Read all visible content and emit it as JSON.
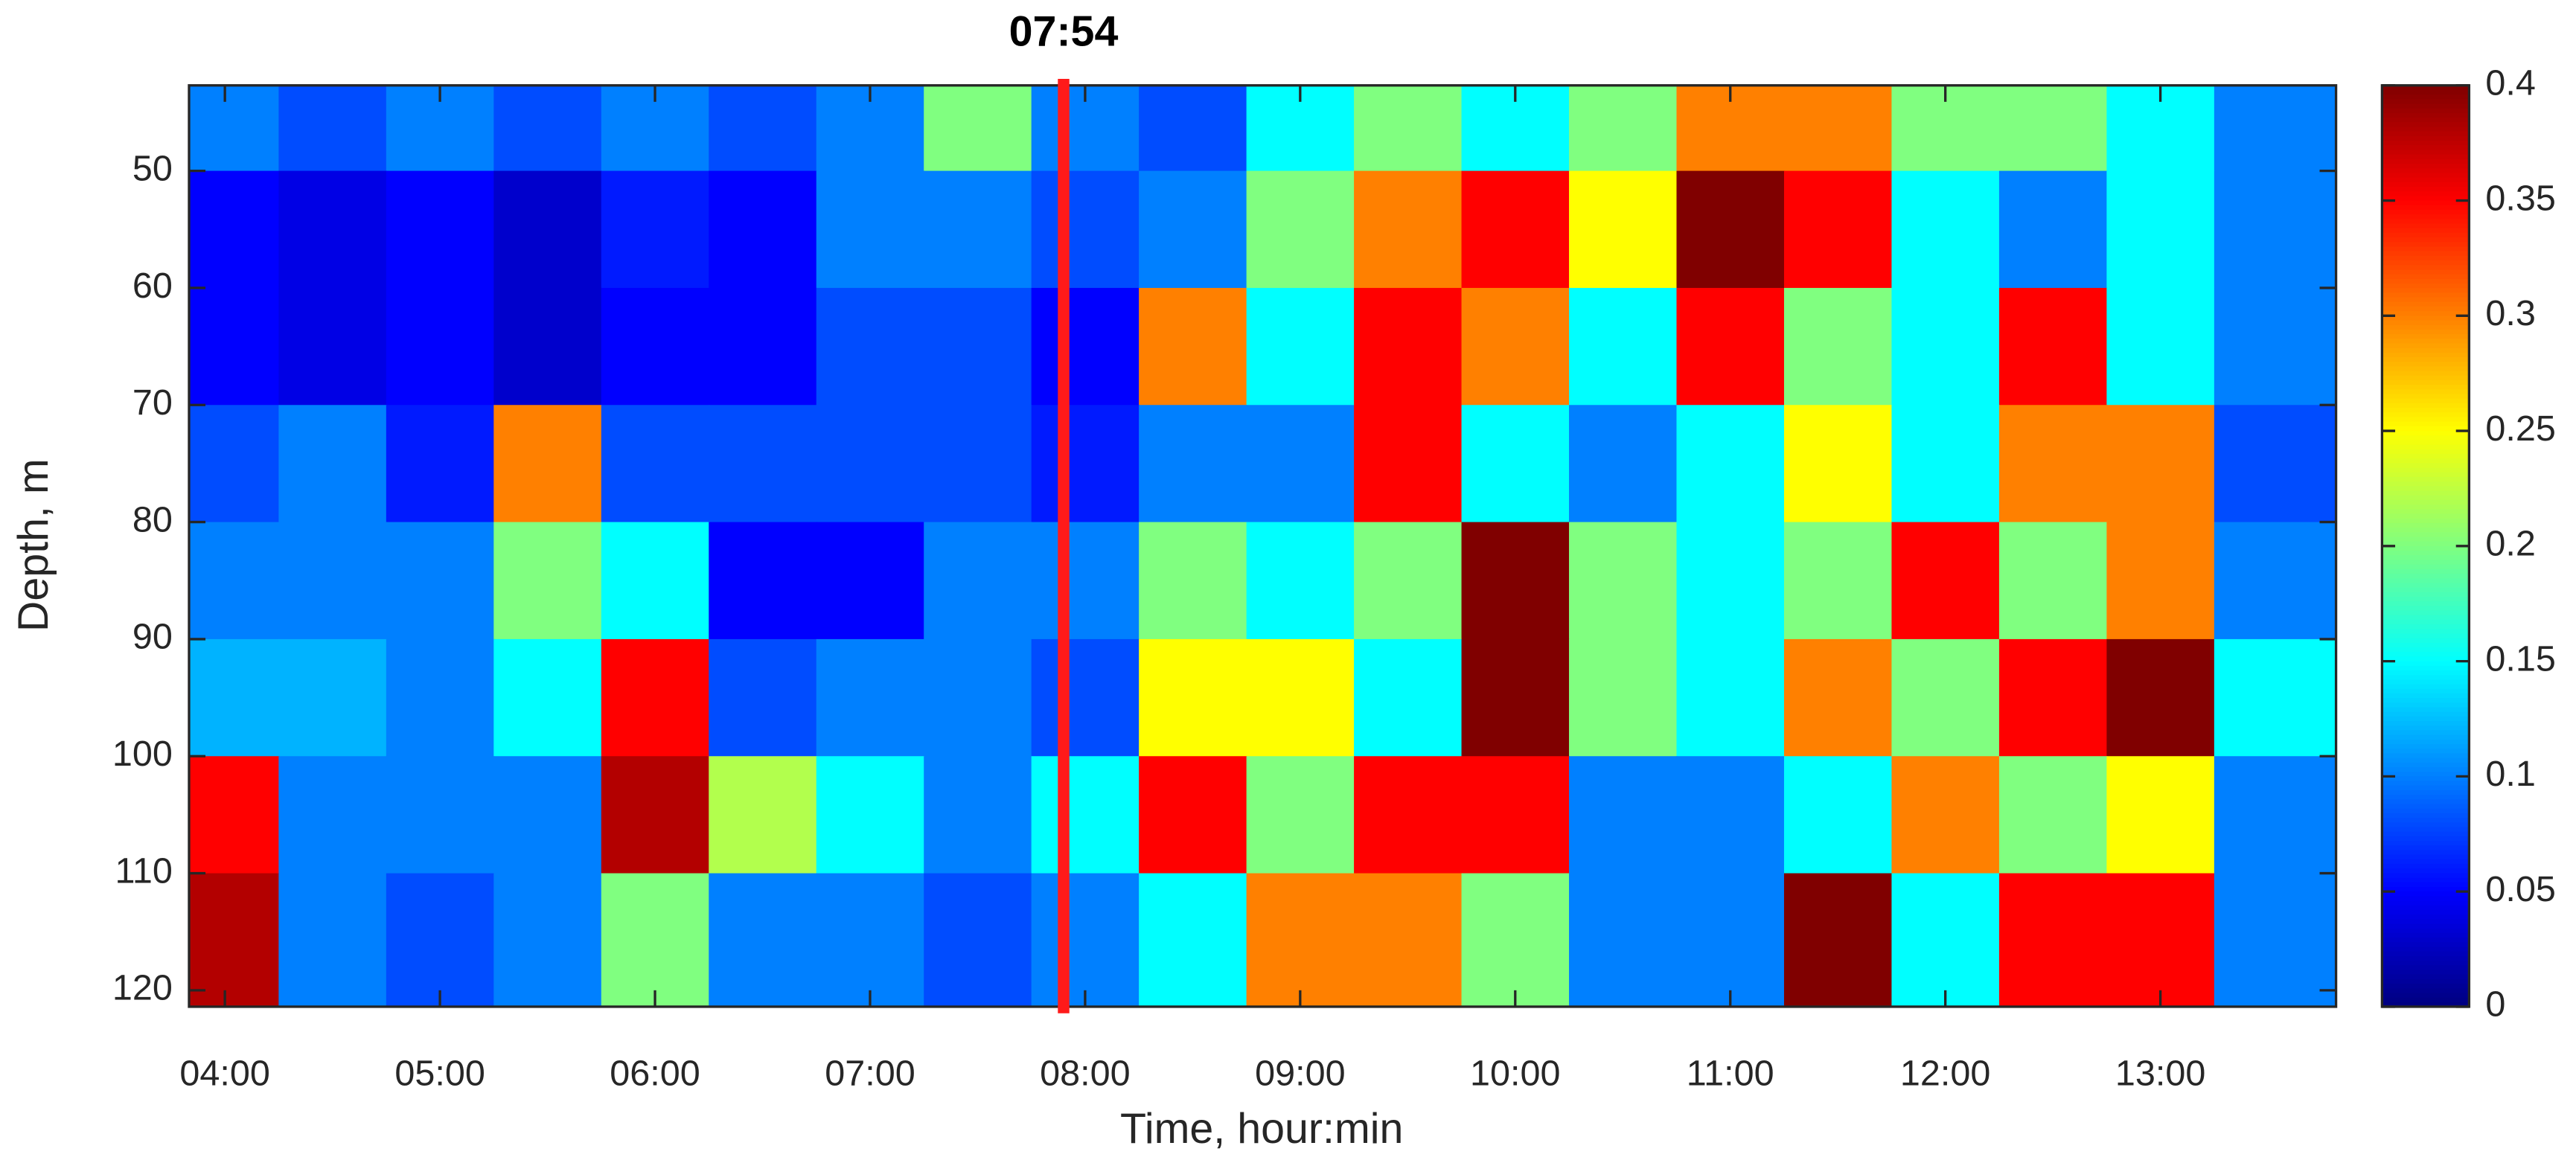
{
  "chart_data": {
    "type": "heatmap",
    "annotation": {
      "value": 474,
      "label": "07:54"
    },
    "annotation_color": "#ff1a1a",
    "xlabel": "Time, hour:min",
    "ylabel": "Depth, m",
    "colormap": "jet",
    "y_reversed": true,
    "xlim": [
      230,
      829
    ],
    "ylim": [
      42.7,
      121.4
    ],
    "clim": [
      0,
      0.4
    ],
    "xticks": [
      {
        "value": 240,
        "label": "04:00"
      },
      {
        "value": 300,
        "label": "05:00"
      },
      {
        "value": 360,
        "label": "06:00"
      },
      {
        "value": 420,
        "label": "07:00"
      },
      {
        "value": 480,
        "label": "08:00"
      },
      {
        "value": 540,
        "label": "09:00"
      },
      {
        "value": 600,
        "label": "10:00"
      },
      {
        "value": 660,
        "label": "11:00"
      },
      {
        "value": 720,
        "label": "12:00"
      },
      {
        "value": 780,
        "label": "13:00"
      }
    ],
    "yticks": [
      50,
      60,
      70,
      80,
      90,
      100,
      110,
      120
    ],
    "cticks": [
      0,
      0.05,
      0.1,
      0.15,
      0.2,
      0.25,
      0.3,
      0.35,
      0.4
    ],
    "x": [
      240,
      270,
      300,
      330,
      360,
      390,
      420,
      450,
      480,
      510,
      540,
      570,
      600,
      630,
      660,
      690,
      720,
      750,
      780,
      810
    ],
    "y": [
      45,
      55,
      65,
      75,
      85,
      95,
      105,
      115
    ],
    "z": [
      [
        0.1,
        0.08,
        0.1,
        0.08,
        0.1,
        0.08,
        0.1,
        0.2,
        0.1,
        0.08,
        0.15,
        0.2,
        0.15,
        0.2,
        0.3,
        0.3,
        0.2,
        0.2,
        0.15,
        0.1
      ],
      [
        0.05,
        0.04,
        0.05,
        0.03,
        0.06,
        0.05,
        0.1,
        0.1,
        0.08,
        0.1,
        0.2,
        0.3,
        0.35,
        0.25,
        0.4,
        0.35,
        0.15,
        0.1,
        0.15,
        0.1
      ],
      [
        0.05,
        0.04,
        0.05,
        0.03,
        0.05,
        0.05,
        0.08,
        0.08,
        0.05,
        0.3,
        0.15,
        0.35,
        0.3,
        0.15,
        0.35,
        0.2,
        0.15,
        0.35,
        0.15,
        0.1
      ],
      [
        0.08,
        0.1,
        0.06,
        0.3,
        0.08,
        0.08,
        0.08,
        0.08,
        0.06,
        0.1,
        0.1,
        0.35,
        0.15,
        0.1,
        0.15,
        0.25,
        0.15,
        0.3,
        0.3,
        0.08
      ],
      [
        0.1,
        0.1,
        0.1,
        0.2,
        0.15,
        0.05,
        0.05,
        0.1,
        0.1,
        0.2,
        0.15,
        0.2,
        0.4,
        0.2,
        0.15,
        0.2,
        0.35,
        0.2,
        0.3,
        0.1
      ],
      [
        0.12,
        0.12,
        0.1,
        0.15,
        0.35,
        0.08,
        0.1,
        0.1,
        0.08,
        0.25,
        0.25,
        0.15,
        0.4,
        0.2,
        0.15,
        0.3,
        0.2,
        0.35,
        0.4,
        0.15
      ],
      [
        0.35,
        0.1,
        0.1,
        0.1,
        0.38,
        0.22,
        0.15,
        0.1,
        0.15,
        0.35,
        0.2,
        0.35,
        0.35,
        0.1,
        0.1,
        0.15,
        0.3,
        0.2,
        0.25,
        0.1
      ],
      [
        0.38,
        0.1,
        0.08,
        0.1,
        0.2,
        0.1,
        0.1,
        0.08,
        0.1,
        0.15,
        0.3,
        0.3,
        0.2,
        0.1,
        0.1,
        0.4,
        0.15,
        0.35,
        0.35,
        0.1
      ]
    ]
  }
}
